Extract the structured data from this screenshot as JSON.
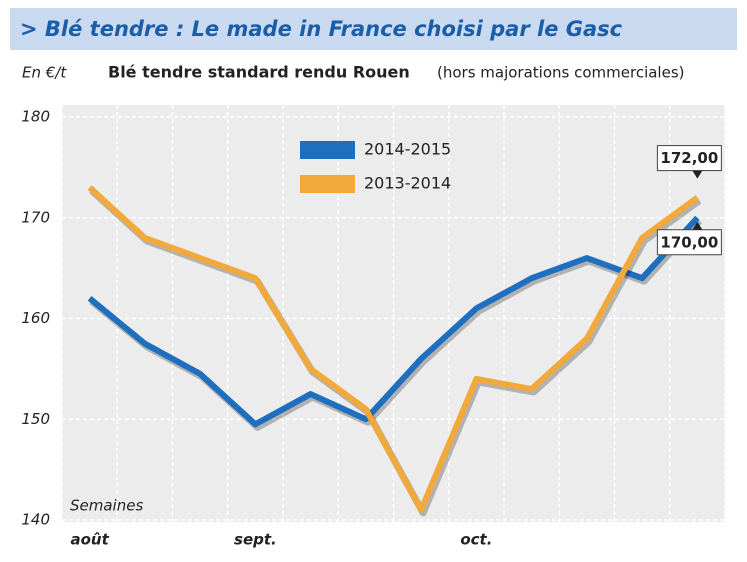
{
  "chart_data": {
    "type": "line",
    "title": "> Blé tendre : Le made in France choisi par le Gasc",
    "y_label": "En €/t",
    "subtitle": "Blé tendre standard rendu Rouen",
    "subtitle_note": "(hors majorations commerciales)",
    "x_label": "Semaines",
    "categories": [
      "août",
      null,
      null,
      "sept.",
      null,
      null,
      null,
      "oct.",
      null,
      null,
      null,
      null
    ],
    "series": [
      {
        "name": "2014-2015",
        "color": "#1f6fc0",
        "values": [
          162,
          157.5,
          154.5,
          149.5,
          152.5,
          150,
          156,
          161,
          164,
          166,
          164,
          170
        ],
        "value_labels": [
          null,
          null,
          null,
          null,
          null,
          null,
          null,
          null,
          null,
          null,
          null,
          "170,00"
        ]
      },
      {
        "name": "2013-2014",
        "color": "#f2a93b",
        "values": [
          173,
          168,
          166,
          164,
          155,
          151,
          141,
          154,
          153,
          158,
          168,
          172
        ],
        "value_labels": [
          null,
          null,
          null,
          null,
          null,
          null,
          null,
          null,
          null,
          null,
          null,
          "172,00"
        ]
      }
    ],
    "ylim": [
      140,
      180
    ],
    "yticks": [
      140,
      150,
      160,
      170,
      180
    ],
    "grid": true
  }
}
